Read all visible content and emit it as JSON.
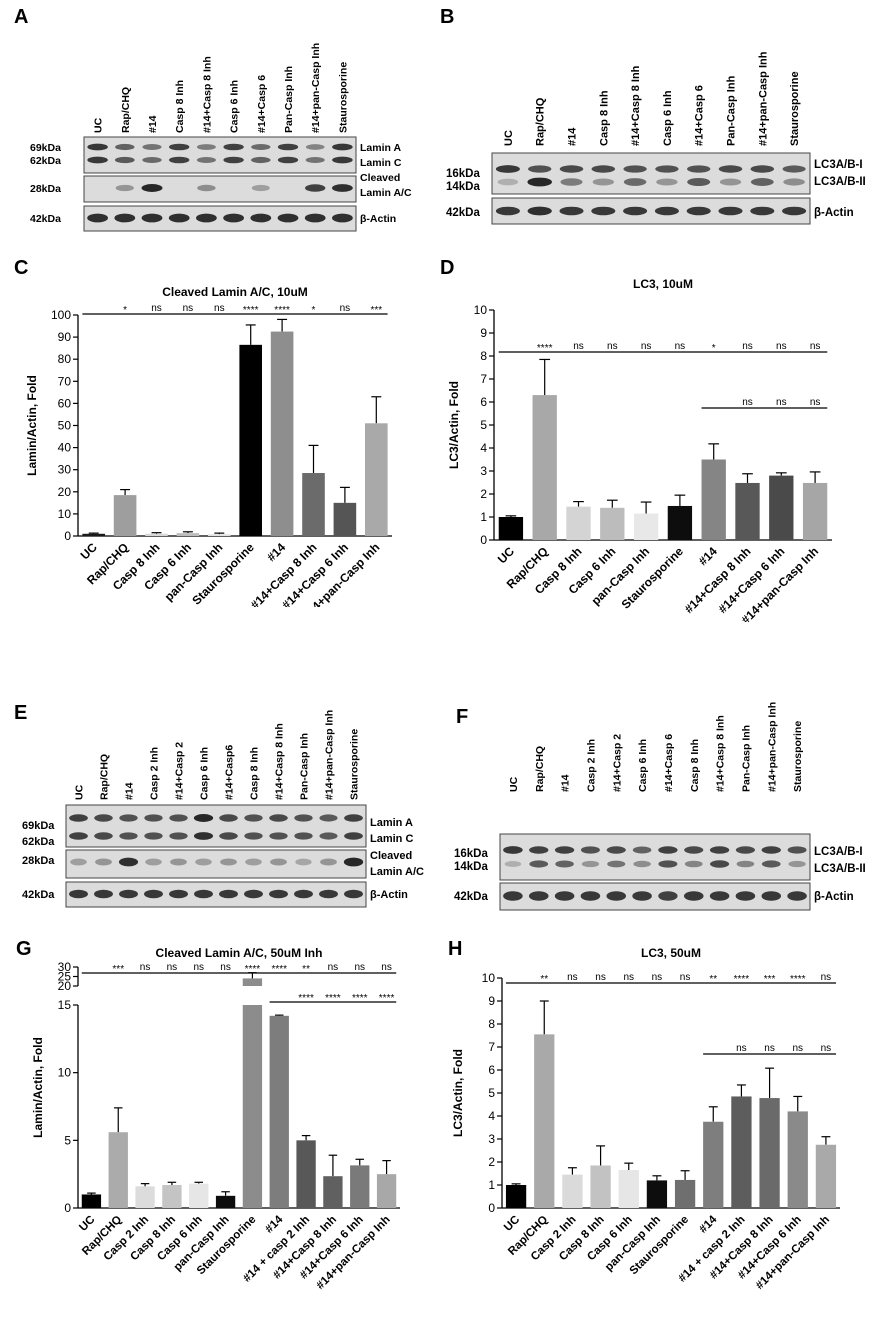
{
  "figure": {
    "panels": {
      "A": {
        "letter": "A",
        "lanes": [
          "UC",
          "Rap/CHQ",
          "#14",
          "Casp 8 Inh",
          "#14+Casp 8 Inh",
          "Casp 6 Inh",
          "#14+Casp 6",
          "Pan-Casp  Inh",
          "#14+pan-Casp Inh",
          "Staurosporine"
        ],
        "mw": [
          "69kDa",
          "62kDa",
          "28kDa",
          "42kDa"
        ],
        "bands": [
          "Lamin A",
          "Lamin C",
          "Cleaved",
          "Lamin A/C",
          "β-Actin"
        ]
      },
      "B": {
        "letter": "B",
        "lanes": [
          "UC",
          "Rap/CHQ",
          "#14",
          "Casp 8 Inh",
          "#14+Casp 8 Inh",
          "Casp 6 Inh",
          "#14+Casp 6",
          "Pan-Casp  Inh",
          "#14+pan-Casp Inh",
          "Staurosporine"
        ],
        "mw": [
          "16kDa",
          "14kDa",
          "42kDa"
        ],
        "bands": [
          "LC3A/B-I",
          "LC3A/B-II",
          "β-Actin"
        ]
      },
      "E": {
        "letter": "E",
        "lanes": [
          "UC",
          "Rap/CHQ",
          "#14",
          "Casp 2 Inh",
          "#14+Casp 2",
          "Casp 6 Inh",
          "#14+Casp6",
          "Casp 8 Inh",
          "#14+Casp 8 Inh",
          "Pan-Casp  Inh",
          "#14+pan-Casp Inh",
          "Staurosporine"
        ],
        "mw": [
          "69kDa",
          "62kDa",
          "28kDa",
          "42kDa"
        ],
        "bands": [
          "Lamin A",
          "Lamin C",
          "Cleaved",
          "Lamin A/C",
          "β-Actin"
        ]
      },
      "F": {
        "letter": "F",
        "lanes": [
          "UC",
          "Rap/CHQ",
          "#14",
          "Casp 2 Inh",
          "#14+Casp 2",
          "Casp 6 Inh",
          "#14+Casp 6",
          "Casp 8 Inh",
          "#14+Casp 8 Inh",
          "Pan-Casp  Inh",
          "#14+pan-Casp Inh",
          "Staurosporine"
        ],
        "mw": [
          "16kDa",
          "14kDa",
          "42kDa"
        ],
        "bands": [
          "LC3A/B-I",
          "LC3A/B-II",
          "β-Actin"
        ]
      }
    }
  },
  "chart_data": [
    {
      "panel": "C",
      "type": "bar",
      "title": "Cleaved Lamin A/C, 10uM",
      "ylabel": "Lamin/Actin, Fold",
      "ylim": [
        0,
        100
      ],
      "yticks": [
        "0",
        "10",
        "20",
        "30",
        "40",
        "50",
        "60",
        "70",
        "80",
        "90",
        "100"
      ],
      "categories": [
        "UC",
        "Rap/CHQ",
        "Casp 8 Inh",
        "Casp 6 Inh",
        "pan-Casp Inh",
        "Staurosporine",
        "#14",
        "#14+Casp 8 Inh",
        "#14+Casp 6 Inh",
        "#14+pan-Casp Inh"
      ],
      "values": [
        1,
        18.5,
        1,
        1.3,
        0.8,
        86.5,
        92.5,
        28.5,
        15,
        51
      ],
      "errors": [
        0.3,
        2.5,
        0.5,
        0.6,
        0.5,
        9,
        5.5,
        12.5,
        7,
        12
      ],
      "colors": [
        "#1a1a1a",
        "#9e9e9e",
        "#d8d8d8",
        "#bdbdbd",
        "#e2e2e2",
        "#000000",
        "#8e8e8e",
        "#6b6b6b",
        "#555555",
        "#a9a9a9"
      ],
      "sig": [
        "",
        "*",
        "ns",
        "ns",
        "ns",
        "****",
        "****",
        "*",
        "ns",
        "***"
      ]
    },
    {
      "panel": "D",
      "type": "bar",
      "title": "LC3, 10uM",
      "ylabel": "LC3/Actin, Fold",
      "ylim": [
        0,
        10
      ],
      "yticks": [
        "0",
        "1",
        "2",
        "3",
        "4",
        "5",
        "6",
        "7",
        "8",
        "9",
        "10"
      ],
      "categories": [
        "UC",
        "Rap/CHQ",
        "Casp 8 Inh",
        "Casp 6 Inh",
        "pan-Casp Inh",
        "Staurosporine",
        "#14",
        "#14+Casp 8 Inh",
        "#14+Casp 6 Inh",
        "#14+pan-Casp Inh"
      ],
      "values": [
        1,
        6.3,
        1.45,
        1.4,
        1.15,
        1.48,
        3.5,
        2.48,
        2.8,
        2.48
      ],
      "errors": [
        0.05,
        1.55,
        0.22,
        0.33,
        0.5,
        0.47,
        0.68,
        0.4,
        0.12,
        0.48
      ],
      "colors": [
        "#000000",
        "#a8a8a8",
        "#d4d4d4",
        "#bcbcbc",
        "#e8e8e8",
        "#0d0d0d",
        "#858585",
        "#585858",
        "#4a4a4a",
        "#a6a6a6"
      ],
      "sig": [
        "",
        "****",
        "ns",
        "ns",
        "ns",
        "ns",
        "*",
        "ns",
        "ns",
        "ns"
      ],
      "sig2": [
        "",
        "",
        "",
        "",
        "",
        "",
        "",
        "ns",
        "ns",
        "ns"
      ]
    },
    {
      "panel": "G",
      "type": "bar",
      "title": "Cleaved Lamin A/C, 50uM Inh",
      "ylabel": "Lamin/Actin, Fold",
      "ylim": [
        0,
        30
      ],
      "yticks": [
        "0",
        "5",
        "10",
        "15",
        "20",
        "25",
        "30"
      ],
      "categories": [
        "UC",
        "Rap/CHQ",
        "Casp 2 Inh",
        "Casp 8 Inh",
        "Casp 6 Inh",
        "pan-Casp Inh",
        "Staurosporine",
        "#14",
        "#14 + casp 2 Inh",
        "#14+Casp 8 Inh",
        "#14+Casp 6 Inh",
        "#14+pan-Casp Inh"
      ],
      "values": [
        1,
        5.6,
        1.6,
        1.7,
        1.8,
        0.9,
        24,
        14.2,
        5,
        2.35,
        3.15,
        2.5
      ],
      "errors": [
        0.1,
        1.8,
        0.2,
        0.2,
        0.1,
        0.3,
        3,
        0.05,
        0.35,
        1.55,
        0.45,
        1
      ],
      "colors": [
        "#000000",
        "#ababab",
        "#dcdcdc",
        "#c4c4c4",
        "#e6e6e6",
        "#0d0d0d",
        "#8c8c8c",
        "#7d7d7d",
        "#585858",
        "#606060",
        "#7a7a7a",
        "#a8a8a8"
      ],
      "sig": [
        "",
        "***",
        "ns",
        "ns",
        "ns",
        "ns",
        "****",
        "****",
        "**",
        "ns",
        "ns",
        "ns"
      ],
      "sig2": [
        "",
        "",
        "",
        "",
        "",
        "",
        "",
        "",
        "****",
        "****",
        "****",
        "****"
      ]
    },
    {
      "panel": "H",
      "type": "bar",
      "title": "LC3, 50uM",
      "ylabel": "LC3/Actin, Fold",
      "ylim": [
        0,
        10
      ],
      "yticks": [
        "0",
        "1",
        "2",
        "3",
        "4",
        "5",
        "6",
        "7",
        "8",
        "9",
        "10"
      ],
      "categories": [
        "UC",
        "Rap/CHQ",
        "Casp 2 Inh",
        "Casp 8 Inh",
        "Casp 6 Inh",
        "pan-Casp Inh",
        "Staurosporine",
        "#14",
        "#14 + casp 2 Inh",
        "#14+Casp 8 Inh",
        "#14+Casp 6 Inh",
        "#14+pan-Casp Inh"
      ],
      "values": [
        1,
        7.55,
        1.45,
        1.85,
        1.65,
        1.2,
        1.22,
        3.75,
        4.85,
        4.78,
        4.2,
        2.75
      ],
      "errors": [
        0.05,
        1.45,
        0.3,
        0.85,
        0.3,
        0.2,
        0.4,
        0.65,
        0.5,
        1.3,
        0.65,
        0.35
      ],
      "colors": [
        "#000000",
        "#a9a9a9",
        "#dadada",
        "#c2c2c2",
        "#e6e6e6",
        "#0d0d0d",
        "#6f6f6f",
        "#7e7e7e",
        "#5d5d5d",
        "#6a6a6a",
        "#8a8a8a",
        "#a9a9a9"
      ],
      "sig": [
        "",
        "**",
        "ns",
        "ns",
        "ns",
        "ns",
        "ns",
        "**",
        "****",
        "***",
        "****",
        "ns"
      ],
      "sig2": [
        "",
        "",
        "",
        "",
        "",
        "",
        "",
        "",
        "ns",
        "ns",
        "ns",
        "ns"
      ]
    }
  ]
}
